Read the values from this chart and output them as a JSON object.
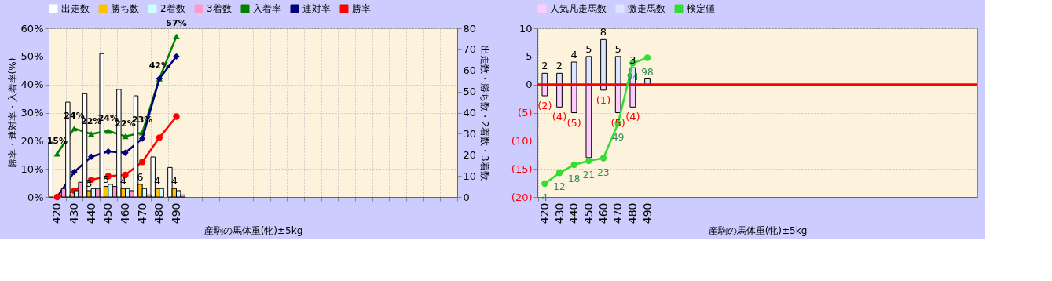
{
  "chart_data": [
    {
      "type": "bar",
      "xlabel": "産駒の馬体重(牝)±5kg",
      "ylabel": "勝率・連対率・入着率(%)",
      "y2label": "出走数・勝ち数・2着数・3着数",
      "grid": true,
      "legend": "top",
      "categories": [
        "420",
        "430",
        "440",
        "450",
        "460",
        "470",
        "480",
        "490",
        null,
        null,
        null,
        null,
        null,
        null,
        null,
        null,
        null,
        null,
        null,
        null,
        null,
        null,
        null,
        null
      ],
      "ylim": [
        0,
        60
      ],
      "yticks": [
        {
          "value": 0,
          "label": "0%"
        },
        {
          "value": 10,
          "label": "10%"
        },
        {
          "value": 20,
          "label": "20%"
        },
        {
          "value": 30,
          "label": "30%"
        },
        {
          "value": 40,
          "label": "40%"
        },
        {
          "value": 50,
          "label": "50%"
        },
        {
          "value": 60,
          "label": "60%"
        }
      ],
      "y2lim": [
        0,
        80
      ],
      "y2ticks": [
        0,
        10,
        20,
        30,
        40,
        50,
        60,
        70,
        80
      ],
      "series": [
        {
          "name": "出走数",
          "axis": "y2",
          "color": "#ffffff",
          "values": [
            26,
            45,
            49,
            68,
            51,
            48,
            19,
            14,
            null,
            null,
            null,
            null,
            null,
            null,
            null,
            null,
            null,
            null,
            null,
            null,
            null,
            null,
            null,
            null
          ]
        },
        {
          "name": "勝ち数",
          "axis": "y2",
          "color": "#ffc000",
          "values": [
            0,
            1,
            3,
            5,
            4,
            6,
            4,
            4,
            null,
            null,
            null,
            null,
            null,
            null,
            null,
            null,
            null,
            null,
            null,
            null,
            null,
            null,
            null,
            null
          ],
          "value_labels": [
            null,
            null,
            "3",
            "5",
            "4",
            "6",
            "4",
            "4",
            null,
            null,
            null,
            null,
            null,
            null,
            null,
            null,
            null,
            null,
            null,
            null,
            null,
            null,
            null,
            null
          ]
        },
        {
          "name": "2着数",
          "axis": "y2",
          "color": "#ccffff",
          "values": [
            0,
            3,
            4,
            6,
            4,
            4,
            4,
            3,
            null,
            null,
            null,
            null,
            null,
            null,
            null,
            null,
            null,
            null,
            null,
            null,
            null,
            null,
            null,
            null
          ]
        },
        {
          "name": "3着数",
          "axis": "y2",
          "color": "#ff99cc",
          "values": [
            4,
            7,
            4,
            5,
            3,
            1,
            0,
            1,
            null,
            null,
            null,
            null,
            null,
            null,
            null,
            null,
            null,
            null,
            null,
            null,
            null,
            null,
            null,
            null
          ]
        },
        {
          "name": "入着率",
          "type": "line",
          "axis": "y",
          "color": "#008000",
          "marker": "triangle",
          "values": [
            15.4,
            24.4,
            22.4,
            23.5,
            21.6,
            22.9,
            42.1,
            57.1,
            null,
            null,
            null,
            null,
            null,
            null,
            null,
            null,
            null,
            null,
            null,
            null,
            null,
            null,
            null,
            null
          ],
          "value_labels": [
            "15%",
            "24%",
            "22%",
            "24%",
            "22%",
            "23%",
            "42%",
            "57%",
            null,
            null,
            null,
            null,
            null,
            null,
            null,
            null,
            null,
            null,
            null,
            null,
            null,
            null,
            null,
            null
          ]
        },
        {
          "name": "連対率",
          "type": "line",
          "axis": "y",
          "color": "#000080",
          "marker": "diamond",
          "values": [
            0,
            8.9,
            14.3,
            16.2,
            15.7,
            20.8,
            42.1,
            50.0,
            null,
            null,
            null,
            null,
            null,
            null,
            null,
            null,
            null,
            null,
            null,
            null,
            null,
            null,
            null,
            null
          ]
        },
        {
          "name": "勝率",
          "type": "line",
          "axis": "y",
          "color": "#ff0000",
          "marker": "circle",
          "values": [
            0,
            2.2,
            6.1,
            7.4,
            7.8,
            12.5,
            21.1,
            28.6,
            null,
            null,
            null,
            null,
            null,
            null,
            null,
            null,
            null,
            null,
            null,
            null,
            null,
            null,
            null,
            null
          ]
        }
      ]
    },
    {
      "type": "bar",
      "stacked": true,
      "xlabel": "産駒の馬体重(牝)±5kg",
      "grid": true,
      "legend": "top",
      "tick_labels": [
        "x",
        "y"
      ],
      "categories": [
        "420",
        "430",
        "440",
        "450",
        "460",
        "470",
        "480",
        "490",
        null,
        null,
        null,
        null,
        null,
        null,
        null,
        null,
        null,
        null,
        null,
        null,
        null,
        null,
        null,
        null,
        null,
        null,
        null,
        null,
        null,
        null
      ],
      "ylim": [
        -20,
        10
      ],
      "yticks": [
        {
          "value": -20,
          "label": "(20)"
        },
        {
          "value": -15,
          "label": "(15)"
        },
        {
          "value": -10,
          "label": "(10)"
        },
        {
          "value": -5,
          "label": "(5)"
        },
        0,
        5,
        10
      ],
      "y2lim": [
        -6,
        120
      ],
      "ref_lines": [
        {
          "axis": "y",
          "value": 0,
          "color": "#ff0000"
        }
      ],
      "series": [
        {
          "name": "人気凡走馬数",
          "axis": "y",
          "color": "#ffccff",
          "values": [
            -2,
            -4,
            -5,
            -13,
            -1,
            -5,
            -4,
            null,
            null,
            null,
            null,
            null,
            null,
            null,
            null,
            null,
            null,
            null,
            null,
            null,
            null,
            null,
            null,
            null,
            null,
            null,
            null,
            null,
            null,
            null
          ],
          "value_labels": [
            "(2)",
            "(4)",
            "(5)",
            null,
            "(1)",
            "(5)",
            "(4)",
            null,
            null,
            null,
            null,
            null,
            null,
            null,
            null,
            null,
            null,
            null,
            null,
            null,
            null,
            null,
            null,
            null,
            null,
            null,
            null,
            null,
            null,
            null
          ]
        },
        {
          "name": "激走馬数",
          "axis": "y",
          "color": "#dde4ff",
          "values": [
            2,
            2,
            4,
            5,
            8,
            5,
            3,
            1,
            null,
            null,
            null,
            null,
            null,
            null,
            null,
            null,
            null,
            null,
            null,
            null,
            null,
            null,
            null,
            null,
            null,
            null,
            null,
            null,
            null,
            null
          ],
          "value_labels": [
            "2",
            "2",
            "4",
            "5",
            "8",
            "5",
            "3",
            null,
            null,
            null,
            null,
            null,
            null,
            null,
            null,
            null,
            null,
            null,
            null,
            null,
            null,
            null,
            null,
            null,
            null,
            null,
            null,
            null,
            null,
            null
          ]
        },
        {
          "name": "検定値",
          "type": "line",
          "axis": "y2",
          "color": "#33dd33",
          "marker": "circle",
          "values": [
            4,
            12,
            18,
            21,
            23,
            49,
            94,
            98,
            null,
            null,
            null,
            null,
            null,
            null,
            null,
            null,
            null,
            null,
            null,
            null,
            null,
            null,
            null,
            null,
            null,
            null,
            null,
            null,
            null,
            null
          ],
          "value_labels": [
            "4",
            "12",
            "18",
            "21",
            "23",
            "49",
            "94",
            "98",
            null,
            null,
            null,
            null,
            null,
            null,
            null,
            null,
            null,
            null,
            null,
            null,
            null,
            null,
            null,
            null,
            null,
            null,
            null,
            null,
            null,
            null
          ]
        }
      ]
    }
  ]
}
